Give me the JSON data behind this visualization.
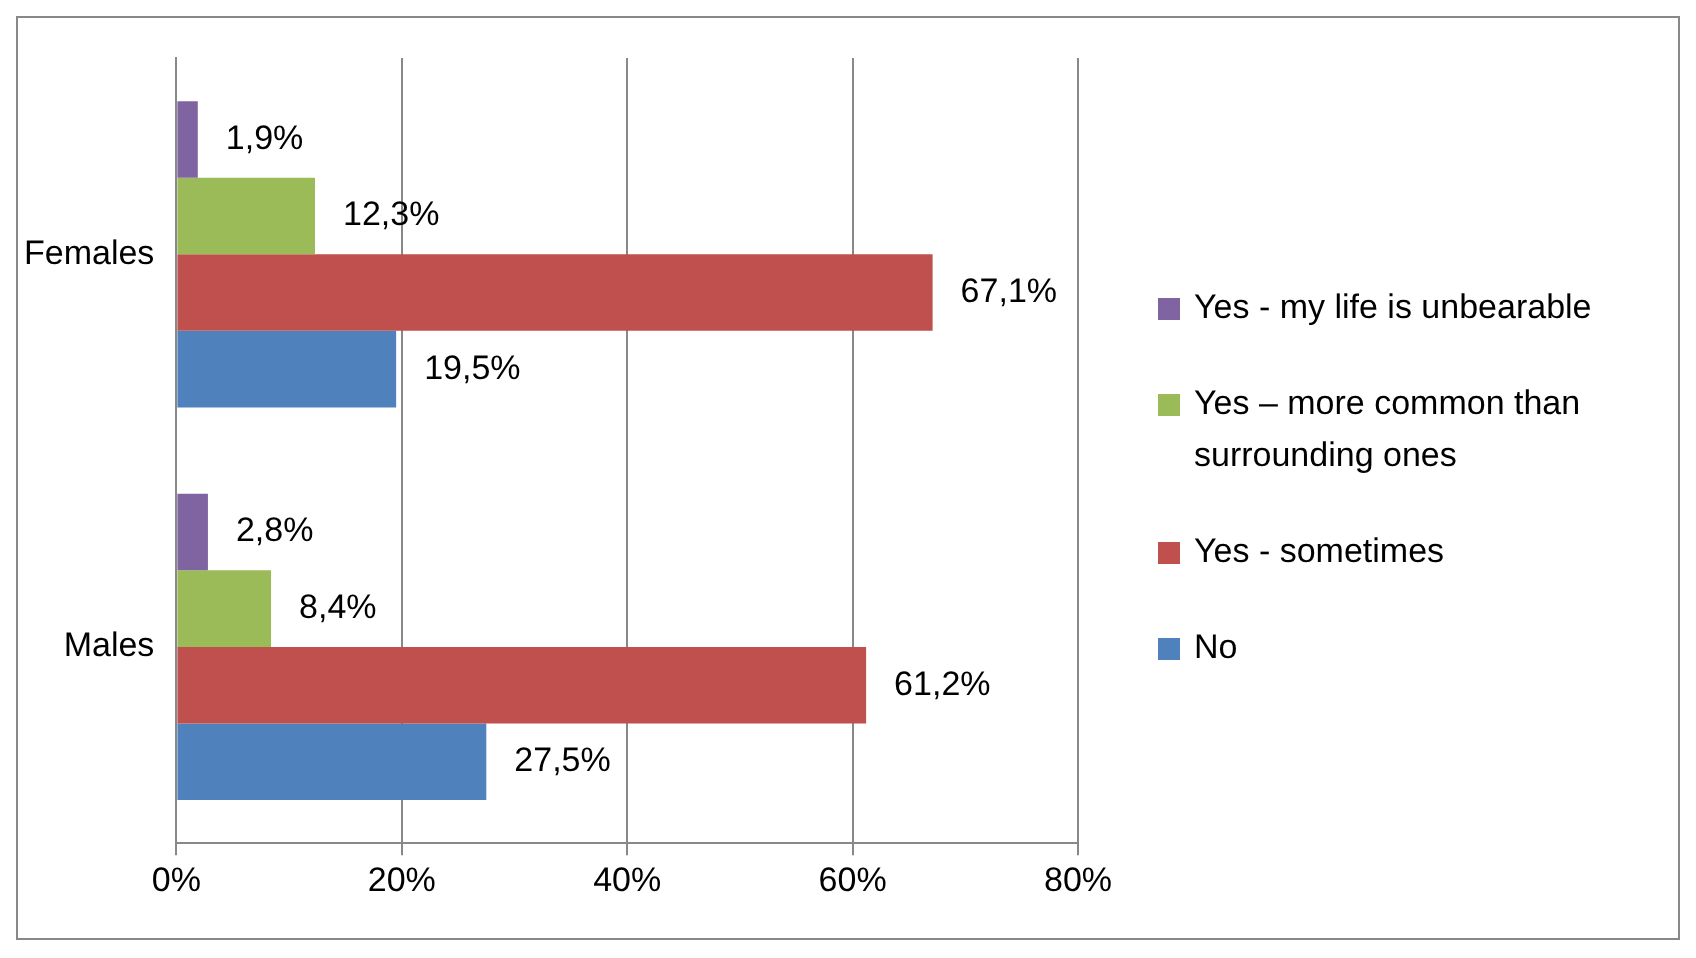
{
  "chart_data": {
    "type": "bar",
    "orientation": "horizontal",
    "categories": [
      "Females",
      "Males"
    ],
    "series": [
      {
        "name": "Yes - my life is unbearable",
        "color": "#8064a2",
        "values": [
          1.9,
          2.8
        ],
        "value_labels": [
          "1,9%",
          "2,8%"
        ]
      },
      {
        "name": "Yes – more common than surrounding ones",
        "color": "#9bbb59",
        "values": [
          12.3,
          8.4
        ],
        "value_labels": [
          "12,3%",
          "8,4%"
        ]
      },
      {
        "name": "Yes - sometimes",
        "color": "#c0504d",
        "values": [
          67.1,
          61.2
        ],
        "value_labels": [
          "67,1%",
          "61,2%"
        ]
      },
      {
        "name": "No",
        "color": "#4f81bd",
        "values": [
          19.5,
          27.5
        ],
        "value_labels": [
          "19,5%",
          "27,5%"
        ]
      }
    ],
    "xlim": [
      0,
      80
    ],
    "xticks": [
      {
        "value": 0,
        "label": "0%"
      },
      {
        "value": 20,
        "label": "20%"
      },
      {
        "value": 40,
        "label": "40%"
      },
      {
        "value": 60,
        "label": "60%"
      },
      {
        "value": 80,
        "label": "80%"
      }
    ],
    "grid": "x",
    "legend": "right"
  }
}
